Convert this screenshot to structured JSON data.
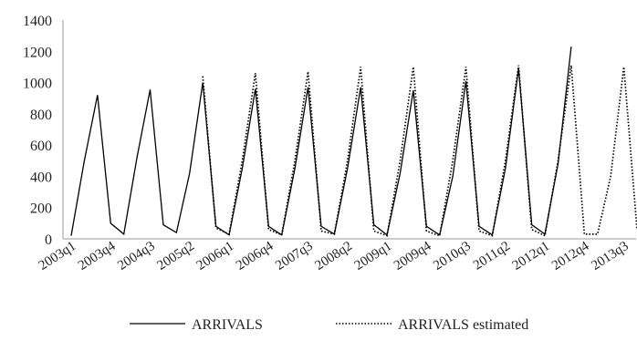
{
  "chart_data": {
    "type": "line",
    "title": "",
    "xlabel": "",
    "ylabel": "",
    "ylim": [
      0,
      1400
    ],
    "yticks": [
      0,
      200,
      400,
      600,
      800,
      1000,
      1200,
      1400
    ],
    "x": [
      "2003q1",
      "2003q2",
      "2003q3",
      "2003q4",
      "2004q1",
      "2004q2",
      "2004q3",
      "2004q4",
      "2005q1",
      "2005q2",
      "2005q3",
      "2005q4",
      "2006q1",
      "2006q2",
      "2006q3",
      "2006q4",
      "2007q1",
      "2007q2",
      "2007q3",
      "2007q4",
      "2008q1",
      "2008q2",
      "2008q3",
      "2008q4",
      "2009q1",
      "2009q2",
      "2009q3",
      "2009q4",
      "2010q1",
      "2010q2",
      "2010q3",
      "2010q4",
      "2011q1",
      "2011q2",
      "2011q3",
      "2011q4",
      "2012q1",
      "2012q2",
      "2012q3",
      "2012q4",
      "2013q1",
      "2013q2",
      "2013q3",
      "2013q4"
    ],
    "xtick_labels": [
      "2003q1",
      "2003q4",
      "2004q3",
      "2005q2",
      "2006q1",
      "2006q4",
      "2007q3",
      "2008q2",
      "2009q1",
      "2009q4",
      "2010q3",
      "2011q2",
      "2012q1",
      "2012q4",
      "2013q3"
    ],
    "grid": false,
    "legend": "bottom",
    "series": [
      {
        "name": "ARRIVALS",
        "style": "solid",
        "color": "#000000",
        "values": [
          20,
          500,
          920,
          100,
          30,
          520,
          955,
          90,
          40,
          420,
          1000,
          80,
          25,
          450,
          960,
          80,
          25,
          450,
          970,
          80,
          30,
          450,
          970,
          90,
          25,
          420,
          950,
          80,
          25,
          400,
          1010,
          80,
          25,
          450,
          1090,
          90,
          30,
          480,
          1230,
          null,
          null,
          null,
          null,
          null
        ]
      },
      {
        "name": "ARRIVALS estimated",
        "style": "dotted",
        "color": "#000000",
        "values": [
          null,
          null,
          null,
          null,
          null,
          null,
          null,
          null,
          null,
          null,
          1040,
          70,
          30,
          500,
          1060,
          60,
          25,
          500,
          1070,
          50,
          30,
          500,
          1100,
          50,
          20,
          500,
          1100,
          50,
          20,
          500,
          1100,
          50,
          20,
          500,
          1110,
          60,
          20,
          500,
          1110,
          30,
          30,
          400,
          1100,
          60
        ]
      }
    ]
  }
}
